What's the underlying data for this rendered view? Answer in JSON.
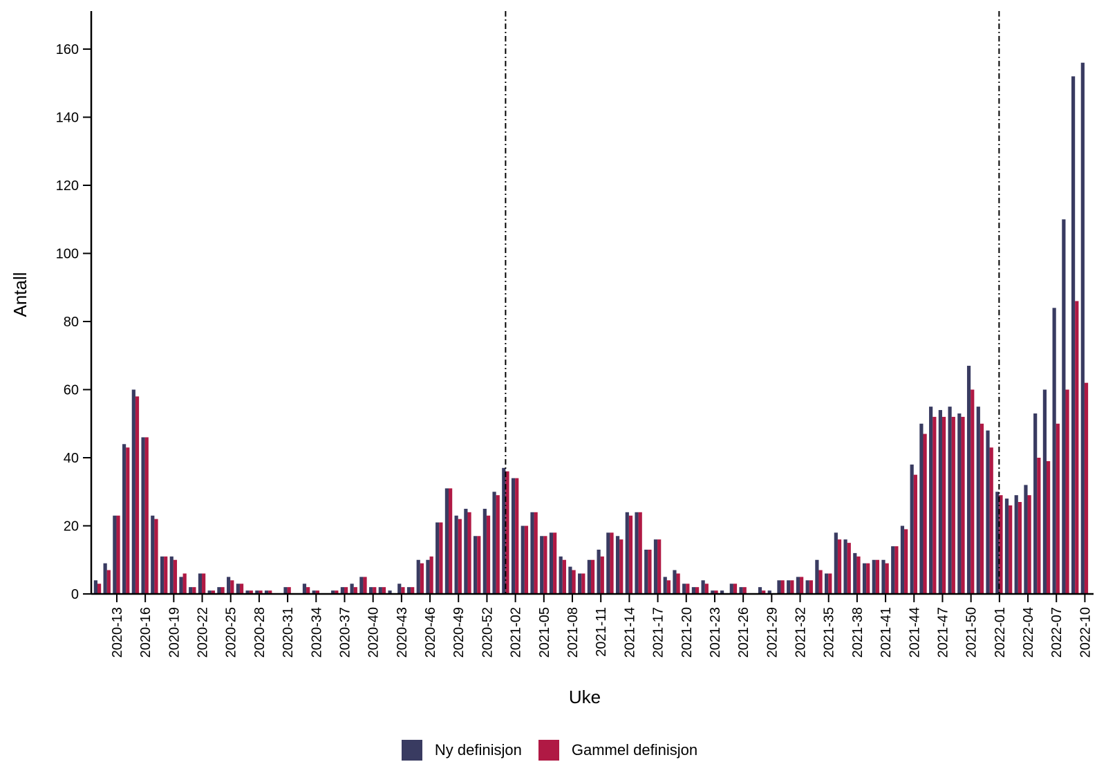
{
  "colors": {
    "ny": "#393b61",
    "gammel": "#b01944",
    "axis": "#000000"
  },
  "chart_data": {
    "type": "bar",
    "title": "",
    "xlabel": "Uke",
    "ylabel": "Antall",
    "ylim": [
      0,
      170
    ],
    "yticks": [
      0,
      20,
      40,
      60,
      80,
      100,
      120,
      140,
      160
    ],
    "ytick_labels": [
      "0",
      "20",
      "40",
      "60",
      "80",
      "100",
      "120",
      "140",
      "160"
    ],
    "grid": false,
    "legend_position": "bottom",
    "categories": [
      "2020-11",
      "2020-12",
      "2020-13",
      "2020-14",
      "2020-15",
      "2020-16",
      "2020-17",
      "2020-18",
      "2020-19",
      "2020-20",
      "2020-21",
      "2020-22",
      "2020-23",
      "2020-24",
      "2020-25",
      "2020-26",
      "2020-27",
      "2020-28",
      "2020-29",
      "2020-30",
      "2020-31",
      "2020-32",
      "2020-33",
      "2020-34",
      "2020-35",
      "2020-36",
      "2020-37",
      "2020-38",
      "2020-39",
      "2020-40",
      "2020-41",
      "2020-42",
      "2020-43",
      "2020-44",
      "2020-45",
      "2020-46",
      "2020-47",
      "2020-48",
      "2020-49",
      "2020-50",
      "2020-51",
      "2020-52",
      "2020-53",
      "2021-01",
      "2021-02",
      "2021-03",
      "2021-04",
      "2021-05",
      "2021-06",
      "2021-07",
      "2021-08",
      "2021-09",
      "2021-10",
      "2021-11",
      "2021-12",
      "2021-13",
      "2021-14",
      "2021-15",
      "2021-16",
      "2021-17",
      "2021-18",
      "2021-19",
      "2021-20",
      "2021-21",
      "2021-22",
      "2021-23",
      "2021-24",
      "2021-25",
      "2021-26",
      "2021-27",
      "2021-28",
      "2021-29",
      "2021-30",
      "2021-31",
      "2021-32",
      "2021-33",
      "2021-34",
      "2021-35",
      "2021-36",
      "2021-37",
      "2021-38",
      "2021-39",
      "2021-40",
      "2021-41",
      "2021-42",
      "2021-43",
      "2021-44",
      "2021-45",
      "2021-46",
      "2021-47",
      "2021-48",
      "2021-49",
      "2021-50",
      "2021-51",
      "2021-52",
      "2022-01",
      "2022-02",
      "2022-03",
      "2022-04",
      "2022-05",
      "2022-06",
      "2022-07",
      "2022-08",
      "2022-09",
      "2022-10"
    ],
    "xtick_labels": [
      "2020-13",
      "2020-16",
      "2020-19",
      "2020-22",
      "2020-25",
      "2020-28",
      "2020-31",
      "2020-34",
      "2020-37",
      "2020-40",
      "2020-43",
      "2020-46",
      "2020-49",
      "2020-52",
      "2021-02",
      "2021-05",
      "2021-08",
      "2021-11",
      "2021-14",
      "2021-17",
      "2021-20",
      "2021-23",
      "2021-26",
      "2021-29",
      "2021-32",
      "2021-35",
      "2021-38",
      "2021-41",
      "2021-44",
      "2021-47",
      "2021-50",
      "2022-01",
      "2022-04",
      "2022-07",
      "2022-10"
    ],
    "vertical_lines": [
      "2021-01",
      "2022-01"
    ],
    "series": [
      {
        "name": "Ny definisjon",
        "values": [
          4,
          9,
          23,
          44,
          60,
          46,
          23,
          11,
          11,
          5,
          2,
          6,
          1,
          2,
          5,
          3,
          1,
          1,
          1,
          0,
          2,
          0,
          3,
          1,
          0,
          1,
          2,
          3,
          5,
          2,
          2,
          1,
          3,
          2,
          10,
          10,
          21,
          31,
          23,
          25,
          17,
          25,
          30,
          37,
          34,
          20,
          24,
          17,
          18,
          11,
          8,
          6,
          10,
          13,
          18,
          17,
          24,
          24,
          13,
          16,
          5,
          7,
          3,
          2,
          4,
          1,
          1,
          3,
          2,
          0,
          2,
          1,
          4,
          4,
          5,
          4,
          10,
          6,
          18,
          16,
          12,
          9,
          10,
          10,
          14,
          20,
          38,
          50,
          55,
          54,
          55,
          53,
          67,
          55,
          48,
          30,
          28,
          29,
          32,
          53,
          60,
          84,
          110,
          152,
          156
        ]
      },
      {
        "name": "Gammel definisjon",
        "values": [
          3,
          7,
          23,
          43,
          58,
          46,
          22,
          11,
          10,
          6,
          2,
          6,
          1,
          2,
          4,
          3,
          1,
          1,
          1,
          0,
          2,
          0,
          2,
          1,
          0,
          1,
          2,
          2,
          5,
          2,
          2,
          0,
          2,
          2,
          9,
          11,
          21,
          31,
          22,
          24,
          17,
          23,
          29,
          36,
          34,
          20,
          24,
          17,
          18,
          10,
          7,
          6,
          10,
          11,
          18,
          16,
          23,
          24,
          13,
          16,
          4,
          6,
          3,
          2,
          3,
          1,
          0,
          3,
          2,
          0,
          1,
          0,
          4,
          4,
          5,
          4,
          7,
          6,
          16,
          15,
          11,
          9,
          10,
          9,
          14,
          19,
          35,
          47,
          52,
          52,
          52,
          52,
          60,
          50,
          43,
          29,
          26,
          27,
          29,
          40,
          39,
          50,
          60,
          86,
          62
        ]
      }
    ]
  }
}
